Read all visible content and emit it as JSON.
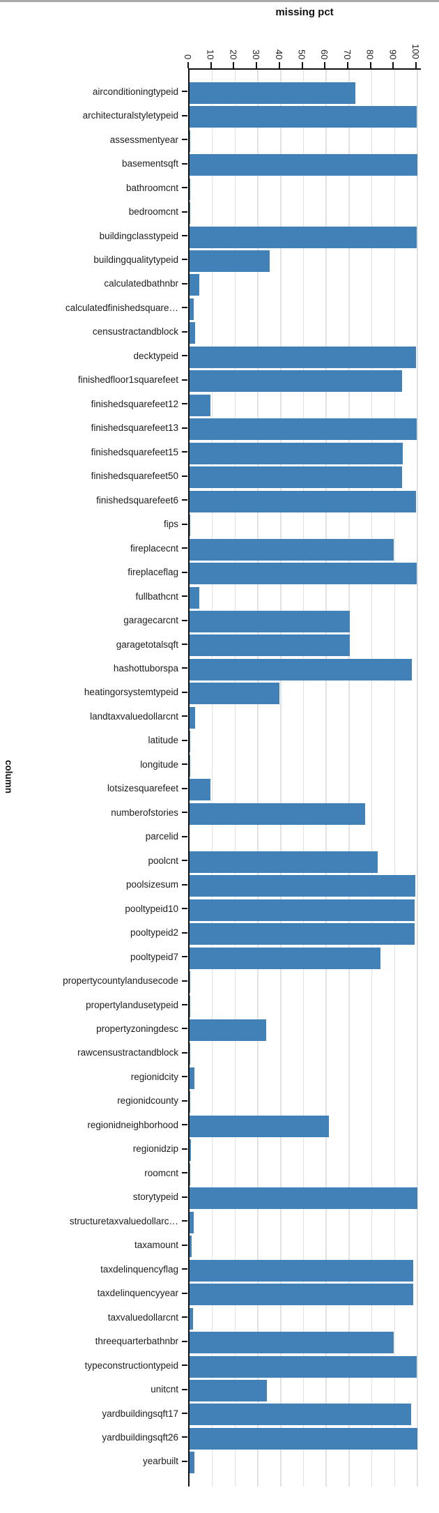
{
  "page": {
    "top_strip_color": "#a9a9a9",
    "background": "#ffffff"
  },
  "chart_data": {
    "type": "bar",
    "orientation": "horizontal",
    "title": "missing pct",
    "ylabel": "column",
    "xlabel": "",
    "legend": null,
    "x_axis": {
      "position": "top",
      "min": 0,
      "max": 100,
      "ticks": [
        0,
        10,
        20,
        30,
        40,
        50,
        60,
        70,
        80,
        90,
        100
      ],
      "tick_label_rotation": 90,
      "grid": true
    },
    "bar_color": "#4181b8",
    "grid_color": "#e1e1e1",
    "axis_color": "#111111",
    "text_color": "#1c1c1c",
    "categories": [
      "airconditioningtypeid",
      "architecturalstyletypeid",
      "assessmentyear",
      "basementsqft",
      "bathroomcnt",
      "bedroomcnt",
      "buildingclasstypeid",
      "buildingqualitytypeid",
      "calculatedbathnbr",
      "calculatedfinishedsquare…",
      "censustractandblock",
      "decktypeid",
      "finishedfloor1squarefeet",
      "finishedsquarefeet12",
      "finishedsquarefeet13",
      "finishedsquarefeet15",
      "finishedsquarefeet50",
      "finishedsquarefeet6",
      "fips",
      "fireplacecnt",
      "fireplaceflag",
      "fullbathcnt",
      "garagecarcnt",
      "garagetotalsqft",
      "hashottuborspa",
      "heatingorsystemtypeid",
      "landtaxvaluedollarcnt",
      "latitude",
      "longitude",
      "lotsizesquarefeet",
      "numberofstories",
      "parcelid",
      "poolcnt",
      "poolsizesum",
      "pooltypeid10",
      "pooltypeid2",
      "pooltypeid7",
      "propertycountylandusecode",
      "propertylandusetypeid",
      "propertyzoningdesc",
      "rawcensustractandblock",
      "regionidcity",
      "regionidcounty",
      "regionidneighborhood",
      "regionidzip",
      "roomcnt",
      "storytypeid",
      "structuretaxvaluedollarc…",
      "taxamount",
      "taxdelinquencyflag",
      "taxdelinquencyyear",
      "taxvaluedollarcnt",
      "threequarterbathnbr",
      "typeconstructiontypeid",
      "unitcnt",
      "yardbuildingsqft17",
      "yardbuildingsqft26",
      "yearbuilt"
    ],
    "values": [
      72.8,
      99.8,
      0.4,
      99.9,
      0.4,
      0.4,
      99.6,
      35.1,
      4.3,
      1.9,
      2.5,
      99.4,
      93.2,
      9.2,
      99.7,
      93.6,
      93.2,
      99.3,
      0.4,
      89.5,
      99.8,
      4.3,
      70.4,
      70.4,
      97.7,
      39.5,
      2.3,
      0.4,
      0.4,
      9.2,
      77.2,
      0.0,
      82.7,
      99.1,
      98.8,
      98.9,
      83.7,
      0.4,
      0.4,
      33.7,
      0.4,
      2.1,
      0.4,
      61.3,
      0.5,
      0.4,
      99.9,
      1.8,
      1.0,
      98.1,
      98.1,
      1.4,
      89.6,
      99.8,
      33.8,
      97.3,
      99.9,
      2.0
    ]
  }
}
